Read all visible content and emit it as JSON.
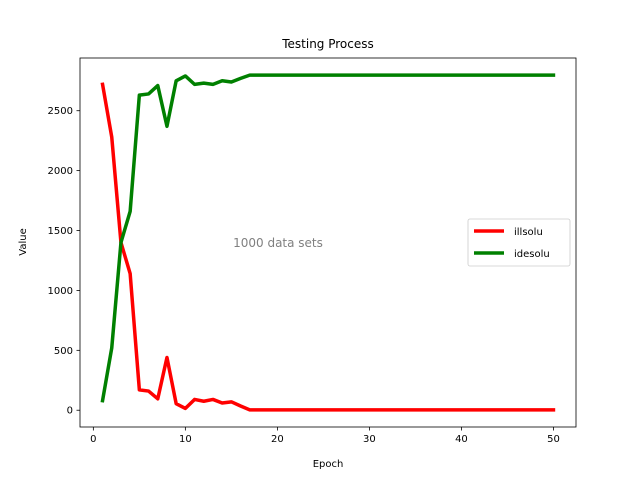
{
  "chart_data": {
    "type": "line",
    "title": "Testing Process",
    "xlabel": "Epoch",
    "ylabel": "Value",
    "xlim": [
      -1.45,
      52.45
    ],
    "ylim": [
      -140,
      2940
    ],
    "xticks": [
      0,
      10,
      20,
      30,
      40,
      50
    ],
    "yticks": [
      0,
      500,
      1000,
      1500,
      2000,
      2500
    ],
    "legend_position": "center-right",
    "annotation": {
      "text": "1000 data sets",
      "x": 26,
      "y": 1400,
      "color": "#808080"
    },
    "x": [
      1,
      2,
      3,
      4,
      5,
      6,
      7,
      8,
      9,
      10,
      11,
      12,
      13,
      14,
      15,
      16,
      17,
      18,
      19,
      20,
      21,
      22,
      23,
      24,
      25,
      26,
      27,
      28,
      29,
      30,
      31,
      32,
      33,
      34,
      35,
      36,
      37,
      38,
      39,
      40,
      41,
      42,
      43,
      44,
      45,
      46,
      47,
      48,
      49,
      50
    ],
    "series": [
      {
        "name": "illsolu",
        "color": "#ff0000",
        "values": [
          2720,
          2280,
          1400,
          1140,
          170,
          160,
          95,
          440,
          55,
          15,
          90,
          75,
          90,
          60,
          70,
          35,
          3,
          3,
          3,
          3,
          3,
          3,
          3,
          3,
          3,
          3,
          3,
          3,
          3,
          3,
          3,
          3,
          3,
          3,
          3,
          3,
          3,
          3,
          3,
          3,
          3,
          3,
          3,
          3,
          3,
          3,
          3,
          3,
          3,
          3
        ]
      },
      {
        "name": "idesolu",
        "color": "#008000",
        "values": [
          80,
          520,
          1400,
          1660,
          2630,
          2640,
          2710,
          2370,
          2750,
          2790,
          2720,
          2730,
          2720,
          2750,
          2740,
          2770,
          2797,
          2797,
          2797,
          2797,
          2797,
          2797,
          2797,
          2797,
          2797,
          2797,
          2797,
          2797,
          2797,
          2797,
          2797,
          2797,
          2797,
          2797,
          2797,
          2797,
          2797,
          2797,
          2797,
          2797,
          2797,
          2797,
          2797,
          2797,
          2797,
          2797,
          2797,
          2797,
          2797,
          2797
        ]
      }
    ]
  }
}
